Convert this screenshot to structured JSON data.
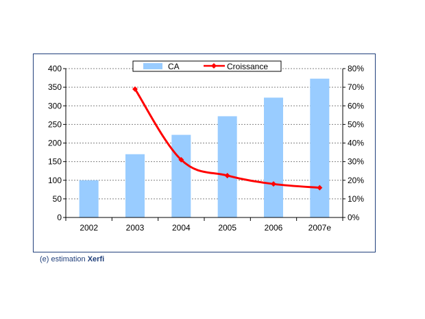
{
  "chart_data": {
    "type": "bar",
    "categories": [
      "2002",
      "2003",
      "2004",
      "2005",
      "2006",
      "2007e"
    ],
    "series": [
      {
        "name": "CA",
        "type": "bar",
        "axis": "left",
        "values": [
          100,
          170,
          222,
          272,
          322,
          373
        ],
        "color": "#99ccff"
      },
      {
        "name": "Croissance",
        "type": "line",
        "axis": "right",
        "values": [
          null,
          69,
          31,
          22.5,
          18,
          16
        ],
        "color": "#ff0000"
      }
    ],
    "y_left": {
      "ylim": [
        0,
        400
      ],
      "ticks": [
        0,
        50,
        100,
        150,
        200,
        250,
        300,
        350,
        400
      ]
    },
    "y_right": {
      "ylim": [
        0,
        80
      ],
      "ticks": [
        "0%",
        "10%",
        "20%",
        "30%",
        "40%",
        "50%",
        "60%",
        "70%",
        "80%"
      ]
    },
    "grid": true,
    "legend": "top-center"
  },
  "note": {
    "prefix": "(e) estimation ",
    "brand": "Xerfi"
  },
  "colors": {
    "frame": "#1f3e7a",
    "grid": "#808080",
    "bar": "#99ccff",
    "line": "#ff0000"
  }
}
